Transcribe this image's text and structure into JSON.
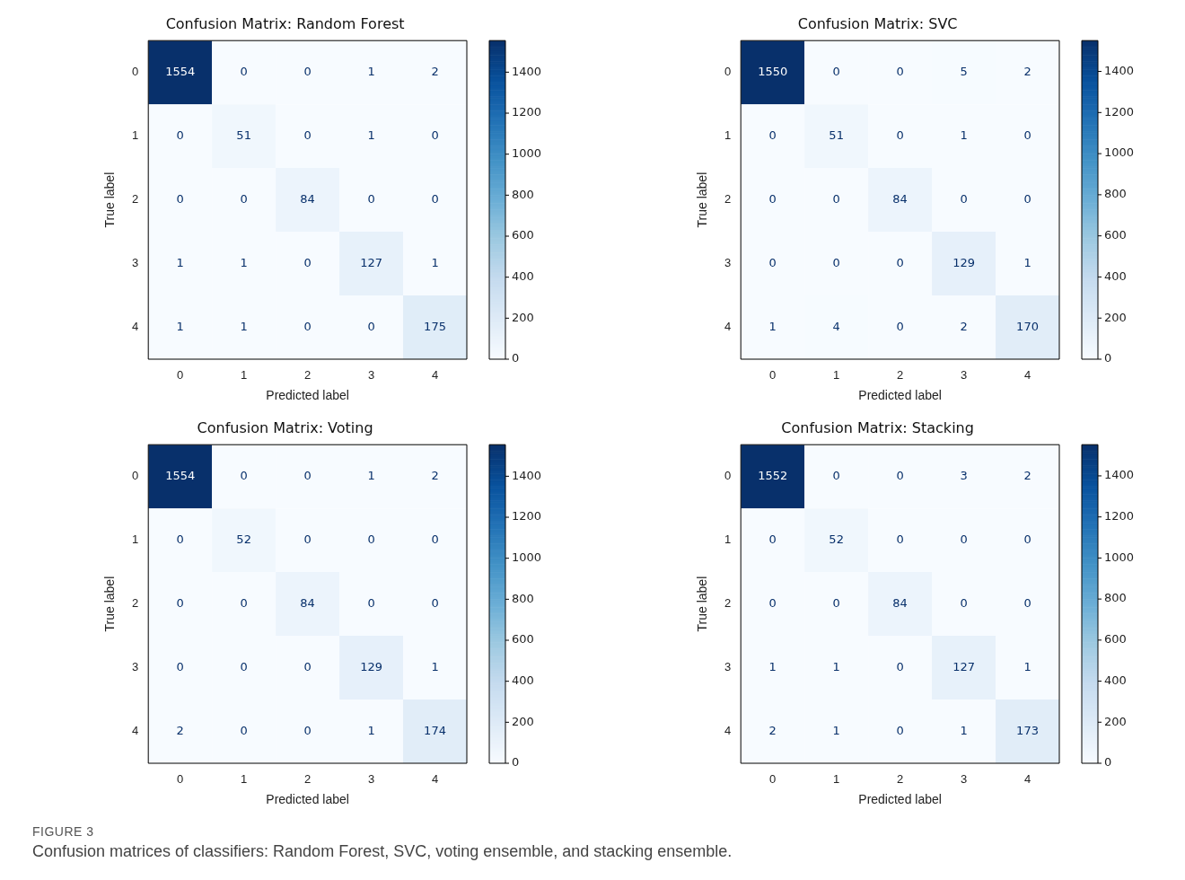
{
  "chart_data": [
    {
      "type": "heatmap",
      "title": "Confusion Matrix: Random Forest",
      "xlabel": "Predicted label",
      "ylabel": "True label",
      "categories": [
        "0",
        "1",
        "2",
        "3",
        "4"
      ],
      "y_categories": [
        "0",
        "1",
        "2",
        "3",
        "4"
      ],
      "cells": [
        [
          1554,
          0,
          0,
          1,
          2
        ],
        [
          0,
          51,
          0,
          1,
          0
        ],
        [
          0,
          0,
          84,
          0,
          0
        ],
        [
          1,
          1,
          0,
          127,
          1
        ],
        [
          1,
          1,
          0,
          0,
          175
        ]
      ],
      "clim": [
        0,
        1554
      ],
      "cticks": [
        0,
        200,
        400,
        600,
        800,
        1000,
        1200,
        1400
      ],
      "data_labels": true
    },
    {
      "type": "heatmap",
      "title": "Confusion Matrix: SVC",
      "xlabel": "Predicted label",
      "ylabel": "True label",
      "categories": [
        "0",
        "1",
        "2",
        "3",
        "4"
      ],
      "y_categories": [
        "0",
        "1",
        "2",
        "3",
        "4"
      ],
      "cells": [
        [
          1550,
          0,
          0,
          5,
          2
        ],
        [
          0,
          51,
          0,
          1,
          0
        ],
        [
          0,
          0,
          84,
          0,
          0
        ],
        [
          0,
          0,
          0,
          129,
          1
        ],
        [
          1,
          4,
          0,
          2,
          170
        ]
      ],
      "clim": [
        0,
        1550
      ],
      "cticks": [
        0,
        200,
        400,
        600,
        800,
        1000,
        1200,
        1400
      ],
      "data_labels": true
    },
    {
      "type": "heatmap",
      "title": "Confusion Matrix: Voting",
      "xlabel": "Predicted label",
      "ylabel": "True label",
      "categories": [
        "0",
        "1",
        "2",
        "3",
        "4"
      ],
      "y_categories": [
        "0",
        "1",
        "2",
        "3",
        "4"
      ],
      "cells": [
        [
          1554,
          0,
          0,
          1,
          2
        ],
        [
          0,
          52,
          0,
          0,
          0
        ],
        [
          0,
          0,
          84,
          0,
          0
        ],
        [
          0,
          0,
          0,
          129,
          1
        ],
        [
          2,
          0,
          0,
          1,
          174
        ]
      ],
      "clim": [
        0,
        1554
      ],
      "cticks": [
        0,
        200,
        400,
        600,
        800,
        1000,
        1200,
        1400
      ],
      "data_labels": true
    },
    {
      "type": "heatmap",
      "title": "Confusion Matrix: Stacking",
      "xlabel": "Predicted label",
      "ylabel": "True label",
      "categories": [
        "0",
        "1",
        "2",
        "3",
        "4"
      ],
      "y_categories": [
        "0",
        "1",
        "2",
        "3",
        "4"
      ],
      "cells": [
        [
          1552,
          0,
          0,
          3,
          2
        ],
        [
          0,
          52,
          0,
          0,
          0
        ],
        [
          0,
          0,
          84,
          0,
          0
        ],
        [
          1,
          1,
          0,
          127,
          1
        ],
        [
          2,
          1,
          0,
          1,
          173
        ]
      ],
      "clim": [
        0,
        1552
      ],
      "cticks": [
        0,
        200,
        400,
        600,
        800,
        1000,
        1200,
        1400
      ],
      "data_labels": true,
      "annotations": [
        "FIGURE 3",
        "Confusion matrices of classifiers: Random Forest, SVC, voting ensemble, and stacking ensemble."
      ]
    }
  ]
}
